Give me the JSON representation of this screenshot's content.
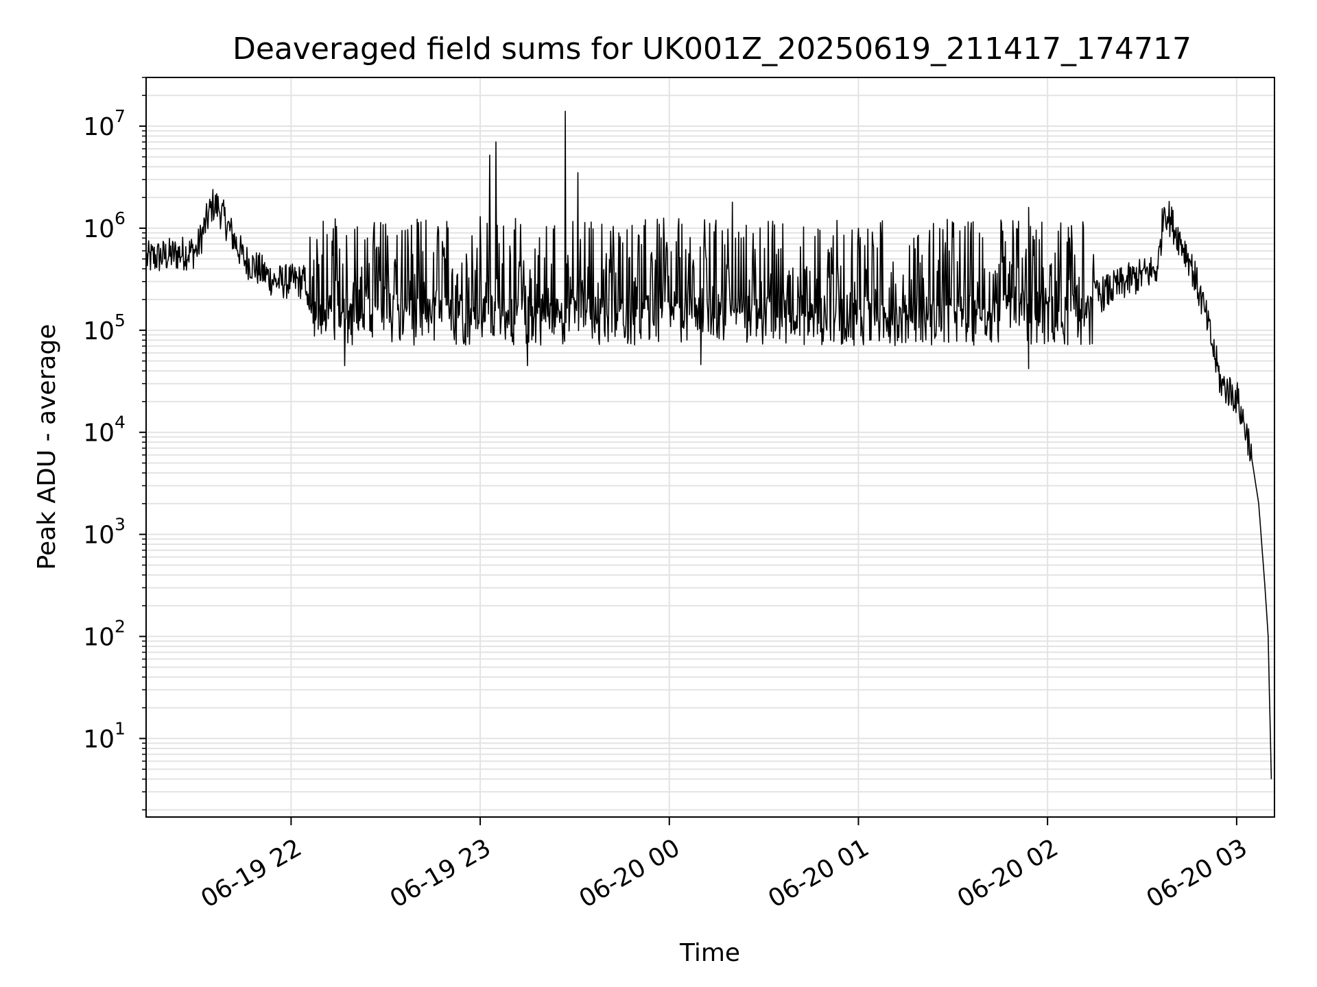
{
  "chart_data": {
    "type": "line",
    "title": "Deaveraged field sums for UK001Z_20250619_211417_174717",
    "xlabel": "Time",
    "ylabel": "Peak ADU - average",
    "yscale": "log",
    "ylim": [
      1.7,
      30000000
    ],
    "xlim": [
      "2025-06-19 21:14",
      "2025-06-20 03:12"
    ],
    "x_ticks": [
      "06-19 22",
      "06-19 23",
      "06-20 00",
      "06-20 01",
      "06-20 02",
      "06-20 03"
    ],
    "y_ticks": [
      {
        "base": "10",
        "exp": "1"
      },
      {
        "base": "10",
        "exp": "2"
      },
      {
        "base": "10",
        "exp": "3"
      },
      {
        "base": "10",
        "exp": "4"
      },
      {
        "base": "10",
        "exp": "5"
      },
      {
        "base": "10",
        "exp": "6"
      },
      {
        "base": "10",
        "exp": "7"
      }
    ],
    "grid": true,
    "line_color": "#000000",
    "series": [
      {
        "points": [
          [
            "2025-06-19 21:14",
            500000
          ],
          [
            "2025-06-19 21:30",
            600000
          ],
          [
            "2025-06-19 21:35",
            1700000
          ],
          [
            "2025-06-19 21:37",
            1600000
          ],
          [
            "2025-06-19 21:45",
            500000
          ],
          [
            "2025-06-19 21:55",
            300000
          ],
          [
            "2025-06-19 22:00",
            300000
          ],
          [
            "2025-06-19 22:15",
            300000
          ],
          [
            "2025-06-19 22:17",
            45000
          ],
          [
            "2025-06-19 22:30",
            1100000
          ],
          [
            "2025-06-19 23:00",
            1300000
          ],
          [
            "2025-06-19 23:03",
            5200000
          ],
          [
            "2025-06-19 23:05",
            7000000
          ],
          [
            "2025-06-19 23:15",
            45000
          ],
          [
            "2025-06-19 23:27",
            14000000
          ],
          [
            "2025-06-19 23:31",
            3500000
          ],
          [
            "2025-06-20 00:10",
            46000
          ],
          [
            "2025-06-20 00:20",
            1800000
          ],
          [
            "2025-06-20 01:00",
            1000000
          ],
          [
            "2025-06-20 01:54",
            42000
          ],
          [
            "2025-06-20 01:54",
            1600000
          ],
          [
            "2025-06-20 02:14",
            200000
          ],
          [
            "2025-06-20 02:25",
            300000
          ],
          [
            "2025-06-20 02:35",
            400000
          ],
          [
            "2025-06-20 02:37",
            1600000
          ],
          [
            "2025-06-20 02:45",
            500000
          ],
          [
            "2025-06-20 02:50",
            150000
          ],
          [
            "2025-06-20 02:55",
            30000
          ],
          [
            "2025-06-20 03:00",
            22000
          ],
          [
            "2025-06-20 03:04",
            8000
          ],
          [
            "2025-06-20 03:07",
            2000
          ],
          [
            "2025-06-20 03:09",
            300
          ],
          [
            "2025-06-20 03:10",
            100
          ],
          [
            "2025-06-20 03:11",
            4
          ]
        ]
      }
    ]
  }
}
